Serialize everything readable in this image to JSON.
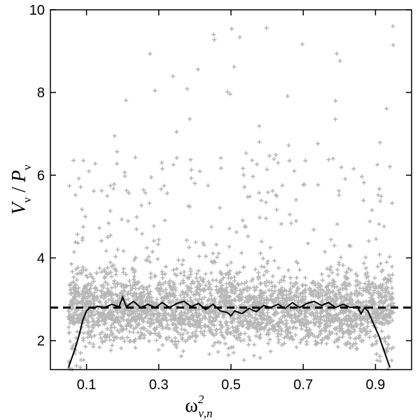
{
  "chart_data": {
    "type": "scatter",
    "title": "",
    "xlabel": {
      "base": "ω",
      "sup": "2",
      "sub": "ν,n"
    },
    "ylabel": {
      "num": "V",
      "num_sub": "ν",
      "sep": " / ",
      "den": "P",
      "den_sub": "ν"
    },
    "xlim": [
      0.0,
      1.0
    ],
    "ylim": [
      1.3,
      10.0
    ],
    "x_ticks": [
      0.1,
      0.3,
      0.5,
      0.7,
      0.9
    ],
    "x_tick_labels": [
      "0.1",
      "0.3",
      "0.5",
      "0.7",
      "0.9"
    ],
    "y_ticks": [
      2,
      4,
      6,
      8,
      10
    ],
    "y_tick_labels": [
      "2",
      "4",
      "6",
      "8",
      "10"
    ],
    "grid": false,
    "scatter_color": "#b7b7b7",
    "reference_line": {
      "y": 2.8,
      "style": "dashed",
      "color": "#000000"
    },
    "mean_curve": {
      "color": "#000000",
      "x": [
        0.05,
        0.06,
        0.07,
        0.08,
        0.09,
        0.1,
        0.11,
        0.12,
        0.13,
        0.15,
        0.17,
        0.19,
        0.2,
        0.21,
        0.23,
        0.25,
        0.27,
        0.29,
        0.31,
        0.33,
        0.35,
        0.37,
        0.39,
        0.41,
        0.43,
        0.45,
        0.47,
        0.49,
        0.5,
        0.51,
        0.53,
        0.55,
        0.57,
        0.59,
        0.61,
        0.63,
        0.65,
        0.67,
        0.69,
        0.71,
        0.73,
        0.75,
        0.77,
        0.79,
        0.81,
        0.83,
        0.85,
        0.86,
        0.87,
        0.88,
        0.89,
        0.9,
        0.91,
        0.92,
        0.93,
        0.94
      ],
      "y": [
        1.35,
        1.6,
        1.85,
        2.15,
        2.5,
        2.72,
        2.8,
        2.78,
        2.83,
        2.8,
        2.88,
        2.82,
        3.05,
        2.82,
        2.95,
        2.8,
        2.88,
        2.8,
        2.92,
        2.8,
        2.9,
        2.95,
        2.82,
        2.9,
        2.75,
        2.88,
        2.72,
        2.68,
        2.6,
        2.72,
        2.65,
        2.78,
        2.7,
        2.85,
        2.8,
        2.88,
        2.78,
        2.92,
        2.8,
        2.9,
        2.95,
        2.85,
        2.92,
        2.8,
        2.88,
        2.8,
        2.82,
        2.65,
        2.8,
        2.7,
        2.5,
        2.3,
        2.1,
        1.85,
        1.6,
        1.35
      ]
    },
    "scatter": {
      "count": 15000,
      "x_range": [
        0.05,
        0.95
      ],
      "bulk_y_range": [
        1.5,
        4.0
      ],
      "tail_max_y": 9.9
    }
  }
}
